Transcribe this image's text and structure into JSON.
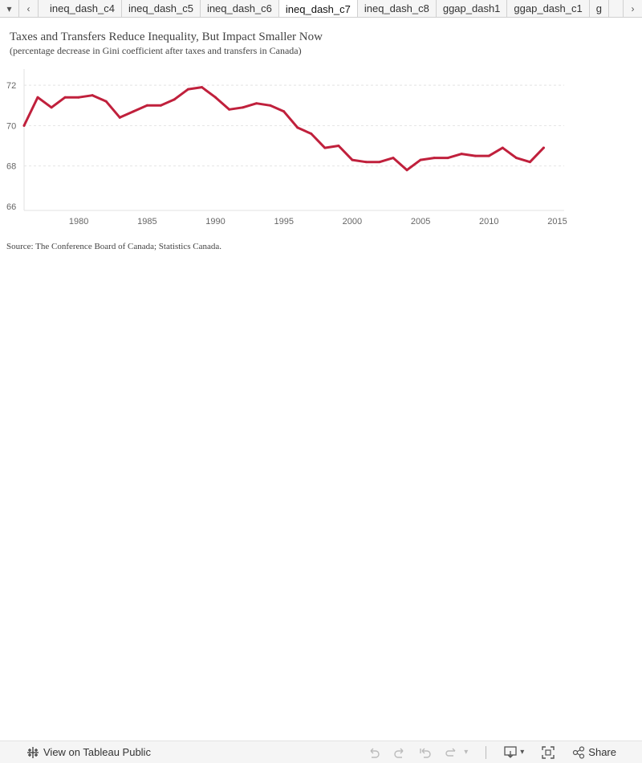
{
  "tabbar": {
    "tabs": [
      {
        "label": "ineq_dash_c4"
      },
      {
        "label": "ineq_dash_c5"
      },
      {
        "label": "ineq_dash_c6"
      },
      {
        "label": "ineq_dash_c7"
      },
      {
        "label": "ineq_dash_c8"
      },
      {
        "label": "ggap_dash1"
      },
      {
        "label": "ggap_dash_c1"
      },
      {
        "label": "g"
      }
    ],
    "active_tab": "ineq_dash_c7"
  },
  "chart_data": {
    "type": "line",
    "title": "Taxes and Transfers Reduce Inequality, But Impact Smaller Now",
    "subtitle": "(percentage decrease in Gini coefficient after taxes and transfers in Canada)",
    "x": [
      1976,
      1977,
      1978,
      1979,
      1980,
      1981,
      1982,
      1983,
      1984,
      1985,
      1986,
      1987,
      1988,
      1989,
      1990,
      1991,
      1992,
      1993,
      1994,
      1995,
      1996,
      1997,
      1998,
      1999,
      2000,
      2001,
      2002,
      2003,
      2004,
      2005,
      2006,
      2007,
      2008,
      2009,
      2010,
      2011,
      2012,
      2013,
      2014
    ],
    "series": [
      {
        "values": [
          70.0,
          71.4,
          70.9,
          71.4,
          71.4,
          71.5,
          71.2,
          70.4,
          70.7,
          71.0,
          71.0,
          71.3,
          71.8,
          71.9,
          71.4,
          70.8,
          70.9,
          71.1,
          71.0,
          70.7,
          69.9,
          69.6,
          68.9,
          69.0,
          68.3,
          68.2,
          68.2,
          68.4,
          67.8,
          68.3,
          68.4,
          68.4,
          68.6,
          68.5,
          68.5,
          68.9,
          68.4,
          68.2,
          68.9
        ]
      }
    ],
    "xlim": [
      1976,
      2015.5
    ],
    "ylim": [
      65.8,
      72.8
    ],
    "y_ticks": [
      66,
      68,
      70,
      72
    ],
    "y_tick_labels": [
      "66",
      "68",
      "70",
      "72"
    ],
    "x_ticks": [
      1980,
      1985,
      1990,
      1995,
      2000,
      2005,
      2010,
      2015
    ],
    "x_tick_labels": [
      "1980",
      "1985",
      "1990",
      "1995",
      "2000",
      "2005",
      "2010",
      "2015"
    ],
    "grid": "horizontal dashed",
    "line_color": "#c0203c"
  },
  "source": "Source: The Conference Board of Canada; Statistics Canada.",
  "bottombar": {
    "view_label": "View on Tableau Public",
    "share_label": "Share"
  }
}
